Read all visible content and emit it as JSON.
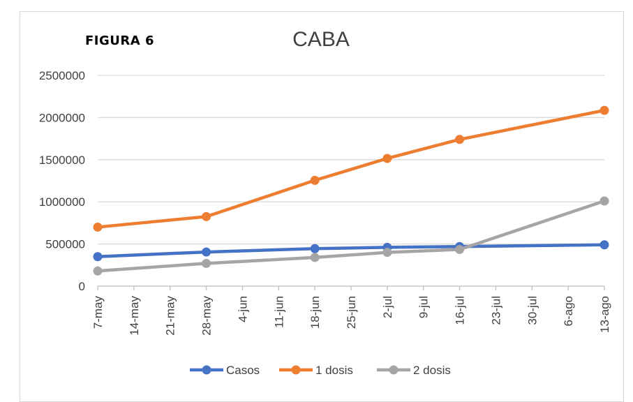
{
  "figure_label": "FIGURA 6",
  "chart_data": {
    "type": "line",
    "title": "CABA",
    "xlabel": "",
    "ylabel": "",
    "ylim": [
      0,
      2500000
    ],
    "yticks": [
      0,
      500000,
      1000000,
      1500000,
      2000000,
      2500000
    ],
    "ytick_labels": [
      "0",
      "500000",
      "1000000",
      "1500000",
      "2000000",
      "2500000"
    ],
    "categories": [
      "7-may",
      "14-may",
      "21-may",
      "28-may",
      "4-jun",
      "11-jun",
      "18-jun",
      "25-jun",
      "2-jul",
      "9-jul",
      "16-jul",
      "23-jul",
      "30-jul",
      "6-ago",
      "13-ago"
    ],
    "grid": true,
    "legend_position": "bottom",
    "series": [
      {
        "name": "Casos",
        "color": "#4472c4",
        "points": [
          {
            "x": "7-may",
            "y": 350000
          },
          {
            "x": "28-may",
            "y": 405000
          },
          {
            "x": "18-jun",
            "y": 445000
          },
          {
            "x": "2-jul",
            "y": 460000
          },
          {
            "x": "16-jul",
            "y": 470000
          },
          {
            "x": "13-ago",
            "y": 490000
          }
        ]
      },
      {
        "name": "1 dosis",
        "color": "#ed7d31",
        "points": [
          {
            "x": "7-may",
            "y": 700000
          },
          {
            "x": "28-may",
            "y": 825000
          },
          {
            "x": "18-jun",
            "y": 1255000
          },
          {
            "x": "2-jul",
            "y": 1515000
          },
          {
            "x": "16-jul",
            "y": 1740000
          },
          {
            "x": "13-ago",
            "y": 2085000
          }
        ]
      },
      {
        "name": "2 dosis",
        "color": "#a5a5a5",
        "points": [
          {
            "x": "7-may",
            "y": 180000
          },
          {
            "x": "28-may",
            "y": 270000
          },
          {
            "x": "18-jun",
            "y": 340000
          },
          {
            "x": "2-jul",
            "y": 400000
          },
          {
            "x": "16-jul",
            "y": 435000
          },
          {
            "x": "13-ago",
            "y": 1010000
          }
        ]
      }
    ]
  }
}
